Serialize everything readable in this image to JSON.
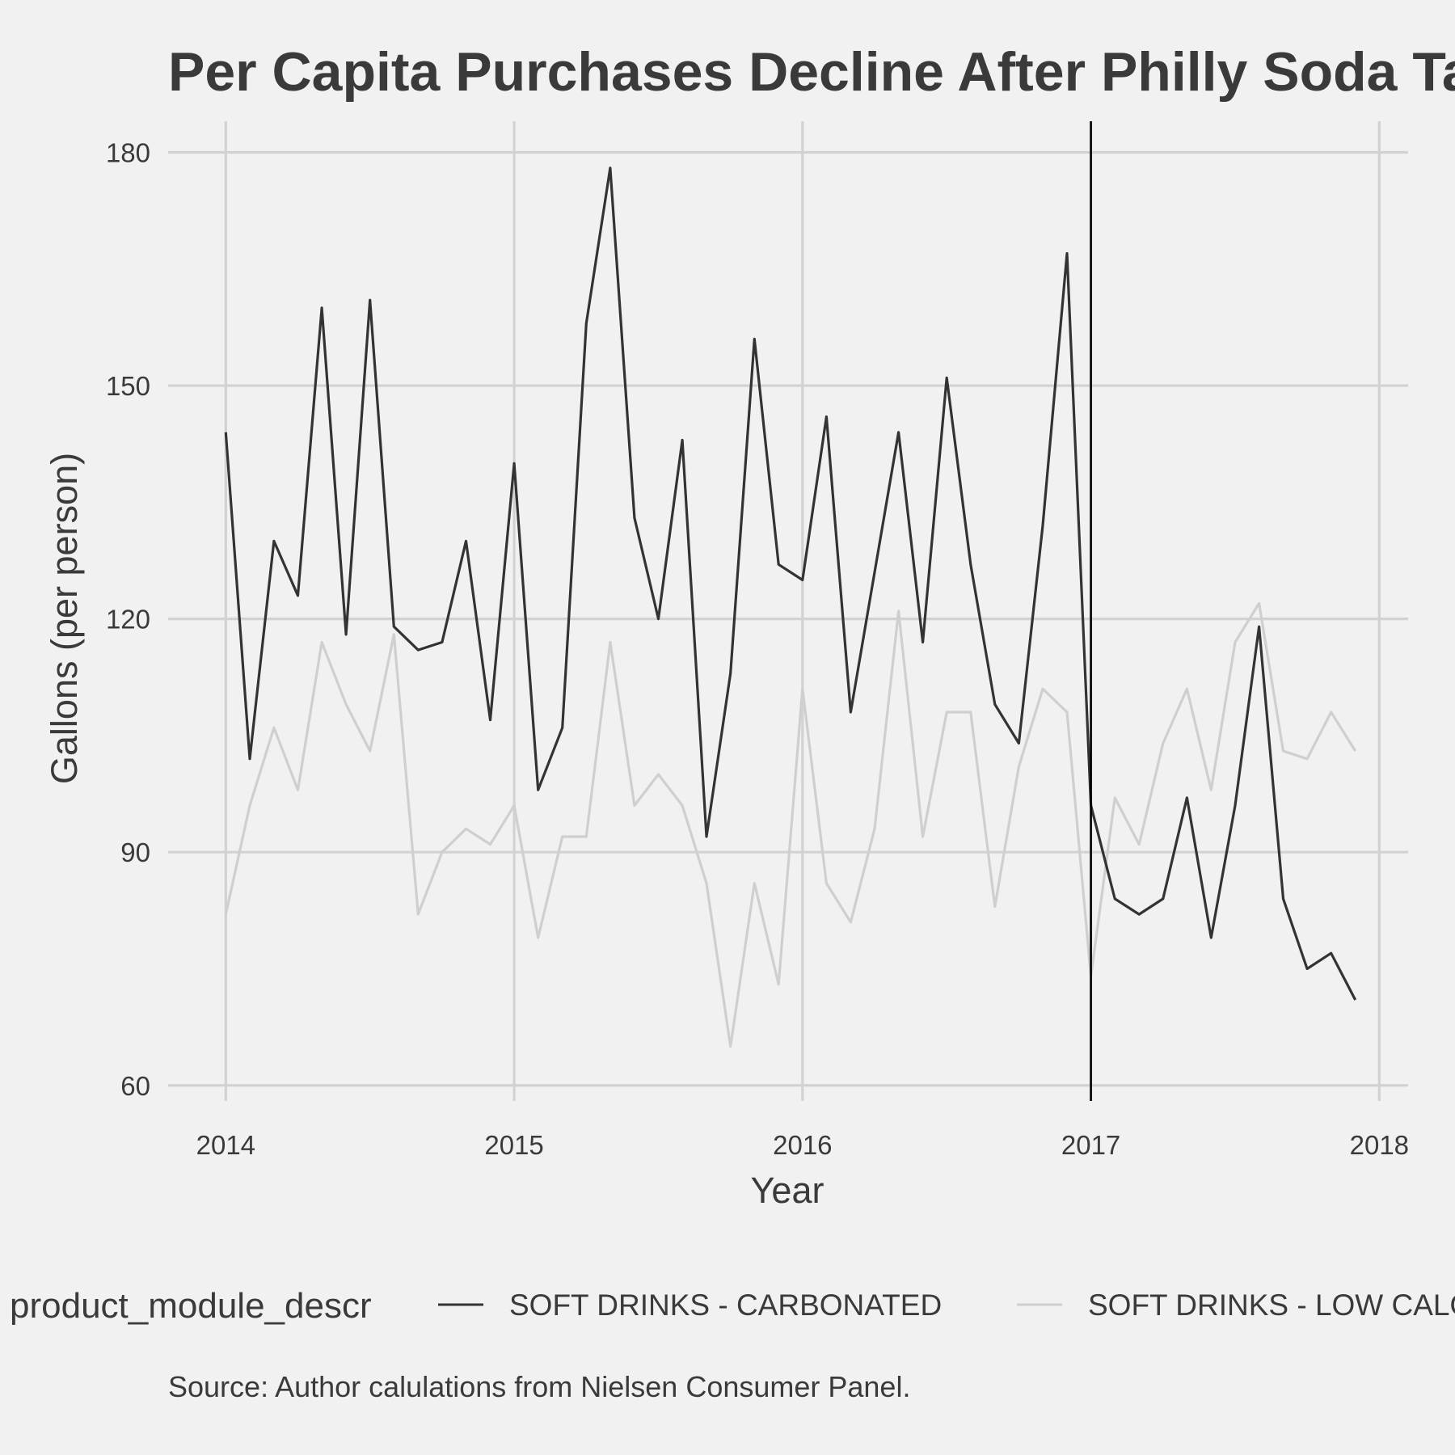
{
  "chart_data": {
    "type": "line",
    "title": "Per Capita Purchases Decline After Philly Soda Tax",
    "xlabel": "Year",
    "ylabel": "Gallons (per person)",
    "caption": "Source: Author calulations from Nielsen Consumer Panel.",
    "legend_title": "product_module_descr",
    "legend_position": "bottom",
    "grid": true,
    "xlim": [
      2013.8,
      2018.1
    ],
    "ylim": [
      58,
      184
    ],
    "x_ticks": [
      2014,
      2015,
      2016,
      2017,
      2018
    ],
    "y_ticks": [
      60,
      90,
      120,
      150,
      180
    ],
    "x_tick_labels": [
      "2014",
      "2015",
      "2016",
      "2017",
      "2018"
    ],
    "y_tick_labels": [
      "60",
      "90",
      "120",
      "150",
      "180"
    ],
    "vline_x": 2017,
    "x": [
      2014.0,
      2014.083,
      2014.167,
      2014.25,
      2014.333,
      2014.417,
      2014.5,
      2014.583,
      2014.667,
      2014.75,
      2014.833,
      2014.917,
      2015.0,
      2015.083,
      2015.167,
      2015.25,
      2015.333,
      2015.417,
      2015.5,
      2015.583,
      2015.667,
      2015.75,
      2015.833,
      2015.917,
      2016.0,
      2016.083,
      2016.167,
      2016.25,
      2016.333,
      2016.417,
      2016.5,
      2016.583,
      2016.667,
      2016.75,
      2016.833,
      2016.917,
      2017.0,
      2017.083,
      2017.167,
      2017.25,
      2017.333,
      2017.417,
      2017.5,
      2017.583,
      2017.667,
      2017.75,
      2017.833,
      2017.917
    ],
    "series": [
      {
        "name": "SOFT DRINKS - CARBONATED",
        "color": "#333333",
        "values": [
          144,
          102,
          130,
          123,
          160,
          118,
          161,
          119,
          116,
          117,
          130,
          107,
          140,
          98,
          106,
          158,
          178,
          133,
          120,
          143,
          92,
          113,
          156,
          127,
          125,
          146,
          108,
          126,
          144,
          117,
          151,
          127,
          109,
          104,
          132,
          167,
          96,
          84,
          82,
          84,
          97,
          79,
          96,
          119,
          84,
          75,
          77,
          71
        ]
      },
      {
        "name": "SOFT DRINKS - LOW CALORIE",
        "color": "#cfcfcf",
        "values": [
          82,
          96,
          106,
          98,
          117,
          109,
          103,
          118,
          82,
          90,
          93,
          91,
          96,
          79,
          92,
          92,
          117,
          96,
          100,
          96,
          86,
          65,
          86,
          73,
          111,
          86,
          81,
          93,
          121,
          92,
          108,
          108,
          83,
          101,
          111,
          108,
          74,
          97,
          91,
          104,
          111,
          98,
          117,
          122,
          103,
          102,
          108,
          103
        ]
      }
    ]
  }
}
